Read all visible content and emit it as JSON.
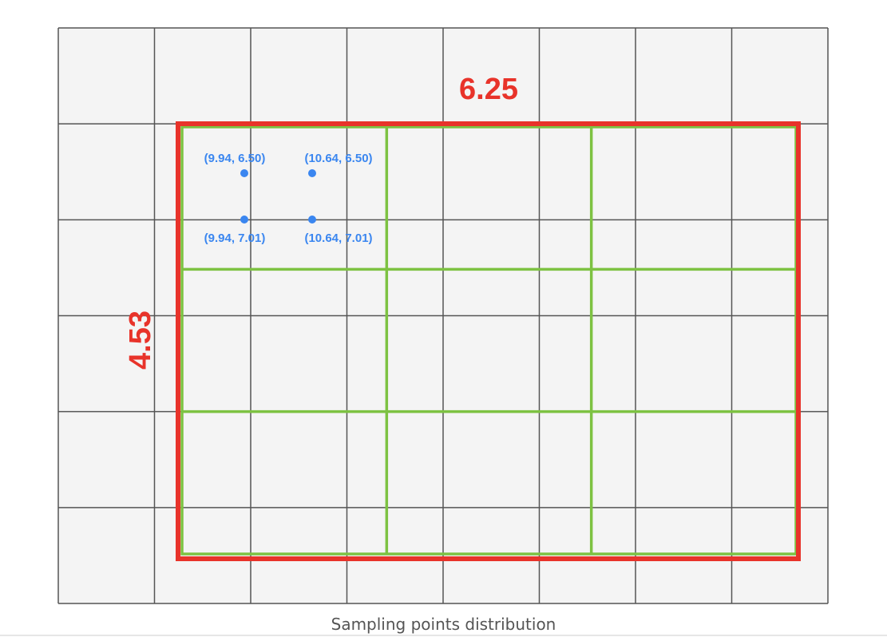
{
  "diagram": {
    "width_label": "6.25",
    "height_label": "4.53",
    "caption": "Sampling points distribution",
    "base_grid": {
      "columns": 8,
      "rows": 6
    },
    "roi_grid": {
      "columns": 3,
      "rows": 3
    },
    "sample_points": [
      {
        "label": "(9.94, 6.50)"
      },
      {
        "label": "(10.64, 6.50)"
      },
      {
        "label": "(9.94, 7.01)"
      },
      {
        "label": "(10.64, 7.01)"
      }
    ],
    "colors": {
      "grid_fill": "#f4f4f4",
      "grid_line": "#555555",
      "roi_box": "#e8332a",
      "roi_bins": "#7dc242",
      "points": "#3a86f0",
      "label": "#e8332a"
    }
  }
}
